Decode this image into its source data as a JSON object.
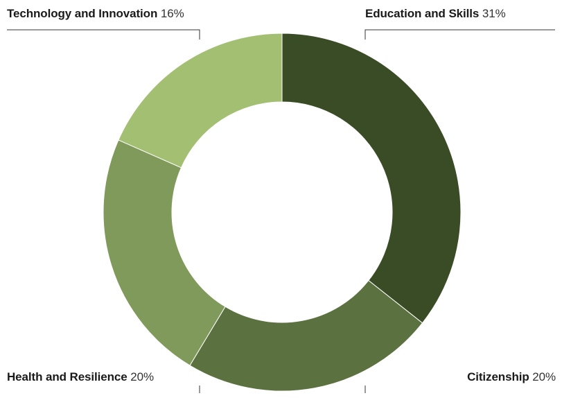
{
  "chart_data": {
    "type": "pie",
    "variant": "donut",
    "slices": [
      {
        "label": "Education and Skills",
        "value": 31,
        "value_label": "31%",
        "color": "#3a4c26"
      },
      {
        "label": "Citizenship",
        "value": 20,
        "value_label": "20%",
        "color": "#5b7140"
      },
      {
        "label": "Health and Resilience",
        "value": 20,
        "value_label": "20%",
        "color": "#7f9a5a"
      },
      {
        "label": "Technology and Innovation",
        "value": 16,
        "value_label": "16%",
        "color": "#a3bf72"
      }
    ],
    "legend": "none",
    "labels_placement": "corners with leader lines"
  }
}
